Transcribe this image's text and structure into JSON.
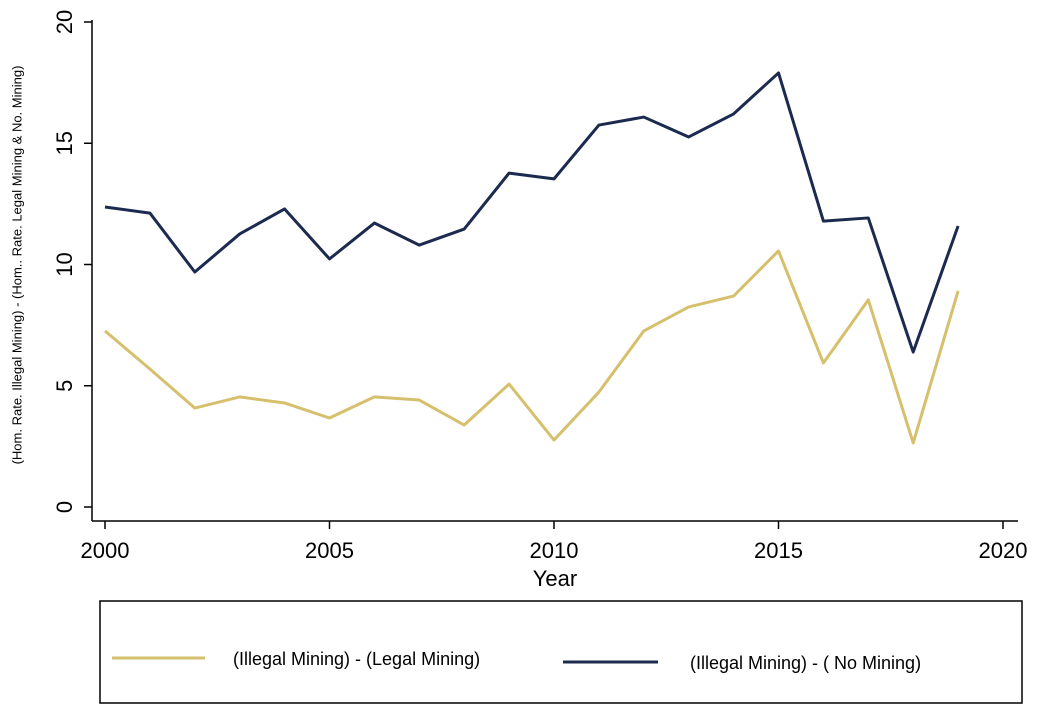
{
  "chart_data": {
    "type": "line",
    "xlabel": "Year",
    "ylabel": "(Hom. Rate. Illegal Mining) - (Hom.. Rate. Legal Mining & No. Mining)",
    "x": [
      2000,
      2001,
      2002,
      2003,
      2004,
      2005,
      2006,
      2007,
      2008,
      2009,
      2010,
      2011,
      2012,
      2013,
      2014,
      2015,
      2016,
      2017,
      2018,
      2019
    ],
    "series": [
      {
        "name": "(Illegal Mining) - (Legal Mining)",
        "color": "#d6c06d",
        "values": [
          7.26,
          5.69,
          4.08,
          4.54,
          4.29,
          3.67,
          4.54,
          4.41,
          3.38,
          5.07,
          2.76,
          4.74,
          7.26,
          8.25,
          8.7,
          10.56,
          5.94,
          8.54,
          2.64,
          8.91
        ]
      },
      {
        "name": "(Illegal Mining) - ( No Mining)",
        "color": "#1b2a4e",
        "values": [
          12.37,
          12.12,
          9.69,
          11.26,
          12.29,
          10.23,
          11.71,
          10.8,
          11.46,
          13.77,
          13.53,
          15.75,
          16.08,
          15.26,
          16.21,
          17.9,
          11.79,
          11.92,
          6.39,
          11.59
        ]
      }
    ],
    "xlim": [
      2000,
      2020
    ],
    "xticks": [
      2000,
      2005,
      2010,
      2015,
      2020
    ],
    "ylim": [
      0,
      20
    ],
    "yticks": [
      0,
      5,
      10,
      15,
      20
    ],
    "legend": "bottom"
  }
}
